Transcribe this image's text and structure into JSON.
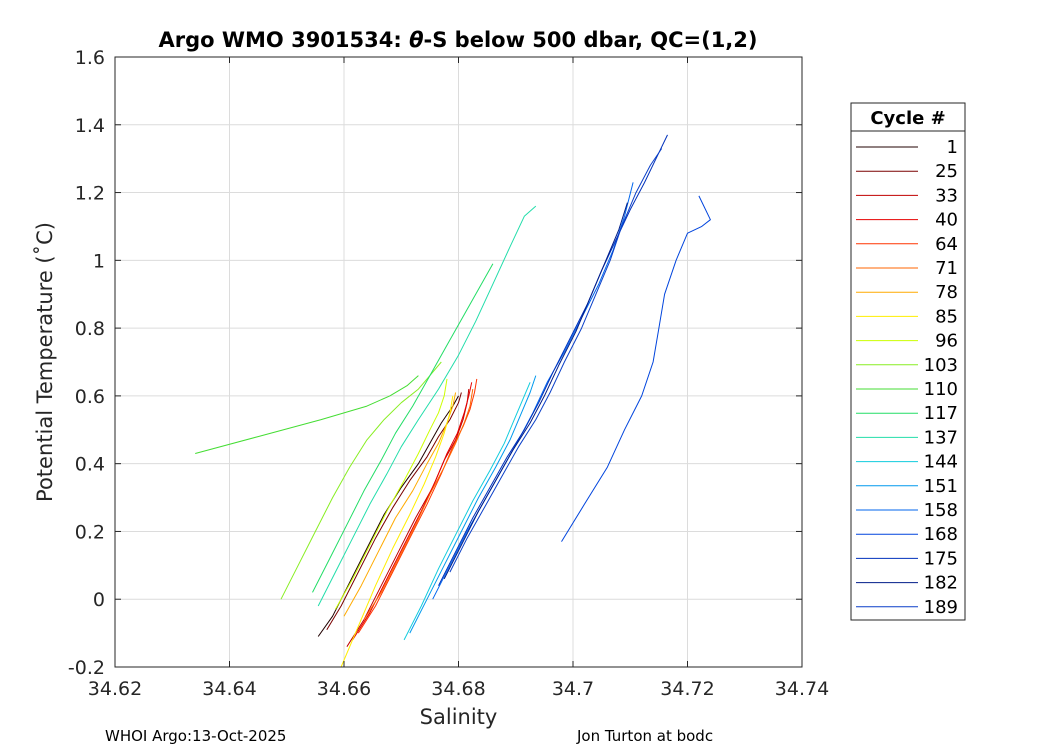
{
  "chart_data": {
    "type": "line",
    "title": "Argo WMO 3901534: θ-S below 500 dbar,  QC=(1,2)",
    "title_parts": [
      "Argo WMO 3901534: ",
      "θ",
      "-S below 500 dbar,  QC=(1,2)"
    ],
    "xlabel": "Salinity",
    "ylabel": "Potential Temperature (˚C)",
    "xlim": [
      34.62,
      34.74
    ],
    "ylim": [
      -0.2,
      1.6
    ],
    "xticks": [
      34.62,
      34.64,
      34.66,
      34.68,
      34.7,
      34.72,
      34.74
    ],
    "yticks": [
      -0.2,
      0,
      0.2,
      0.4,
      0.6,
      0.8,
      1,
      1.2,
      1.4,
      1.6
    ],
    "xtick_labels": [
      "34.62",
      "34.64",
      "34.66",
      "34.68",
      "34.7",
      "34.72",
      "34.74"
    ],
    "ytick_labels": [
      "-0.2",
      "0",
      "0.2",
      "0.4",
      "0.6",
      "0.8",
      "1",
      "1.2",
      "1.4",
      "1.6"
    ],
    "grid": true,
    "legend_title": "Cycle #",
    "legend_position": "outside-right",
    "series": [
      {
        "name": "1",
        "color": "#200000",
        "s": [
          34.6555,
          34.658,
          34.661,
          34.664,
          34.667,
          34.67,
          34.673,
          34.675,
          34.677,
          34.679,
          34.68
        ],
        "t": [
          -0.11,
          -0.05,
          0.05,
          0.15,
          0.25,
          0.33,
          0.4,
          0.46,
          0.52,
          0.57,
          0.6
        ]
      },
      {
        "name": "25",
        "color": "#7a0000",
        "s": [
          34.657,
          34.6595,
          34.6625,
          34.6655,
          34.6685,
          34.6715,
          34.6745,
          34.6765,
          34.6785,
          34.68,
          34.6805
        ],
        "t": [
          -0.09,
          -0.02,
          0.08,
          0.18,
          0.27,
          0.35,
          0.42,
          0.48,
          0.53,
          0.58,
          0.61
        ]
      },
      {
        "name": "33",
        "color": "#c00000",
        "s": [
          34.6605,
          34.6635,
          34.6665,
          34.6695,
          34.6725,
          34.6755,
          34.6775,
          34.6795,
          34.6808,
          34.6815,
          34.6818
        ],
        "t": [
          -0.14,
          -0.06,
          0.04,
          0.14,
          0.24,
          0.33,
          0.41,
          0.47,
          0.53,
          0.58,
          0.62
        ]
      },
      {
        "name": "40",
        "color": "#e60000",
        "s": [
          34.6615,
          34.6645,
          34.6675,
          34.6705,
          34.6735,
          34.676,
          34.678,
          34.6798,
          34.681,
          34.6818,
          34.6823
        ],
        "t": [
          -0.12,
          -0.04,
          0.06,
          0.16,
          0.26,
          0.35,
          0.43,
          0.49,
          0.55,
          0.6,
          0.64
        ]
      },
      {
        "name": "64",
        "color": "#ff3300",
        "s": [
          34.6625,
          34.6655,
          34.6685,
          34.6715,
          34.6745,
          34.677,
          34.679,
          34.6808,
          34.682,
          34.6828,
          34.6832
        ],
        "t": [
          -0.1,
          -0.02,
          0.08,
          0.18,
          0.28,
          0.37,
          0.45,
          0.51,
          0.56,
          0.61,
          0.65
        ]
      },
      {
        "name": "71",
        "color": "#ff6600",
        "s": [
          34.6635,
          34.6665,
          34.6695,
          34.6725,
          34.675,
          34.6775,
          34.6795,
          34.681,
          34.682,
          34.6825
        ],
        "t": [
          -0.06,
          0.02,
          0.12,
          0.22,
          0.31,
          0.39,
          0.46,
          0.52,
          0.57,
          0.62
        ]
      },
      {
        "name": "78",
        "color": "#ffaa00",
        "s": [
          34.66,
          34.663,
          34.666,
          34.669,
          34.672,
          34.6745,
          34.6765,
          34.678,
          34.679,
          34.6795
        ],
        "t": [
          -0.05,
          0.04,
          0.14,
          0.24,
          0.32,
          0.4,
          0.46,
          0.52,
          0.57,
          0.61
        ]
      },
      {
        "name": "85",
        "color": "#ffee00",
        "s": [
          34.6595,
          34.6625,
          34.6655,
          34.6685,
          34.6715,
          34.674,
          34.676,
          34.6775,
          34.6785,
          34.679
        ],
        "t": [
          -0.2,
          -0.08,
          0.04,
          0.15,
          0.25,
          0.34,
          0.42,
          0.49,
          0.55,
          0.6
        ]
      },
      {
        "name": "96",
        "color": "#ccff00",
        "s": [
          34.6585,
          34.6615,
          34.6645,
          34.6675,
          34.6705,
          34.673,
          34.675,
          34.6765,
          34.6775,
          34.678
        ],
        "t": [
          -0.03,
          0.06,
          0.16,
          0.26,
          0.35,
          0.43,
          0.5,
          0.55,
          0.6,
          0.65
        ]
      },
      {
        "name": "103",
        "color": "#88ee22",
        "s": [
          34.649,
          34.652,
          34.655,
          34.658,
          34.661,
          34.664,
          34.667,
          34.67,
          34.673,
          34.675,
          34.677
        ],
        "t": [
          0.0,
          0.1,
          0.2,
          0.3,
          0.39,
          0.47,
          0.53,
          0.58,
          0.62,
          0.66,
          0.7
        ]
      },
      {
        "name": "110",
        "color": "#44dd33",
        "s": [
          34.634,
          34.645,
          34.656,
          34.664,
          34.668,
          34.671,
          34.673
        ],
        "t": [
          0.43,
          0.48,
          0.53,
          0.57,
          0.6,
          0.63,
          0.66
        ]
      },
      {
        "name": "117",
        "color": "#22dd66",
        "s": [
          34.6545,
          34.6575,
          34.6605,
          34.6635,
          34.6665,
          34.669,
          34.672,
          34.675,
          34.678,
          34.681,
          34.684,
          34.686
        ],
        "t": [
          0.02,
          0.12,
          0.22,
          0.32,
          0.41,
          0.49,
          0.57,
          0.66,
          0.75,
          0.84,
          0.93,
          0.99
        ]
      },
      {
        "name": "137",
        "color": "#22ddaa",
        "s": [
          34.6555,
          34.6585,
          34.6615,
          34.6645,
          34.6675,
          34.67,
          34.673,
          34.6765,
          34.68,
          34.683,
          34.686,
          34.689,
          34.6915,
          34.6935
        ],
        "t": [
          -0.02,
          0.08,
          0.18,
          0.28,
          0.37,
          0.45,
          0.53,
          0.62,
          0.72,
          0.82,
          0.93,
          1.04,
          1.13,
          1.16
        ]
      },
      {
        "name": "144",
        "color": "#11ccdd",
        "s": [
          34.6705,
          34.6735,
          34.6765,
          34.6795,
          34.6825,
          34.6855,
          34.688,
          34.69,
          34.6915,
          34.6925
        ],
        "t": [
          -0.12,
          -0.02,
          0.09,
          0.19,
          0.29,
          0.38,
          0.46,
          0.54,
          0.6,
          0.64
        ]
      },
      {
        "name": "151",
        "color": "#0099ee",
        "s": [
          34.6715,
          34.6745,
          34.6775,
          34.6805,
          34.6835,
          34.6865,
          34.689,
          34.691,
          34.6925,
          34.6935
        ],
        "t": [
          -0.1,
          0.0,
          0.1,
          0.2,
          0.3,
          0.39,
          0.47,
          0.55,
          0.61,
          0.66
        ]
      },
      {
        "name": "158",
        "color": "#0066ee",
        "s": [
          34.6755,
          34.6785,
          34.6815,
          34.6845,
          34.6875,
          34.6905,
          34.693,
          34.6955,
          34.6985,
          34.7015,
          34.7045,
          34.707,
          34.709,
          34.7105
        ],
        "t": [
          0.0,
          0.1,
          0.2,
          0.29,
          0.38,
          0.47,
          0.55,
          0.64,
          0.73,
          0.83,
          0.93,
          1.03,
          1.13,
          1.23
        ]
      },
      {
        "name": "168",
        "color": "#0044dd",
        "s": [
          34.698,
          34.702,
          34.706,
          34.709,
          34.712,
          34.714,
          34.715,
          34.716,
          34.718,
          34.72,
          34.7225,
          34.724,
          34.722
        ],
        "t": [
          0.17,
          0.28,
          0.39,
          0.5,
          0.6,
          0.7,
          0.8,
          0.9,
          1.0,
          1.08,
          1.1,
          1.12,
          1.19
        ]
      },
      {
        "name": "175",
        "color": "#0030bb",
        "s": [
          34.6765,
          34.6795,
          34.6825,
          34.6855,
          34.6885,
          34.6915,
          34.694,
          34.6965,
          34.6995,
          34.7025,
          34.705,
          34.7075,
          34.71,
          34.7125,
          34.7145,
          34.7165
        ],
        "t": [
          0.04,
          0.14,
          0.24,
          0.33,
          0.42,
          0.5,
          0.58,
          0.67,
          0.77,
          0.87,
          0.97,
          1.06,
          1.15,
          1.23,
          1.3,
          1.37
        ]
      },
      {
        "name": "182",
        "color": "#001c88",
        "s": [
          34.6775,
          34.6805,
          34.6835,
          34.6865,
          34.6895,
          34.6925,
          34.695,
          34.6975,
          34.7005,
          34.703,
          34.7055,
          34.708,
          34.7095
        ],
        "t": [
          0.06,
          0.16,
          0.26,
          0.35,
          0.44,
          0.52,
          0.6,
          0.69,
          0.79,
          0.89,
          0.99,
          1.09,
          1.17
        ]
      },
      {
        "name": "189",
        "color": "#0a3fc8",
        "s": [
          34.6785,
          34.6815,
          34.6845,
          34.6875,
          34.6905,
          34.6935,
          34.696,
          34.6985,
          34.7015,
          34.704,
          34.7065,
          34.7085,
          34.711,
          34.7135,
          34.7155
        ],
        "t": [
          0.08,
          0.18,
          0.27,
          0.36,
          0.45,
          0.53,
          0.61,
          0.7,
          0.8,
          0.9,
          1.0,
          1.1,
          1.2,
          1.28,
          1.33
        ]
      }
    ]
  },
  "footer": {
    "left": "WHOI Argo:13-Oct-2025",
    "right": "Jon Turton at bodc"
  }
}
